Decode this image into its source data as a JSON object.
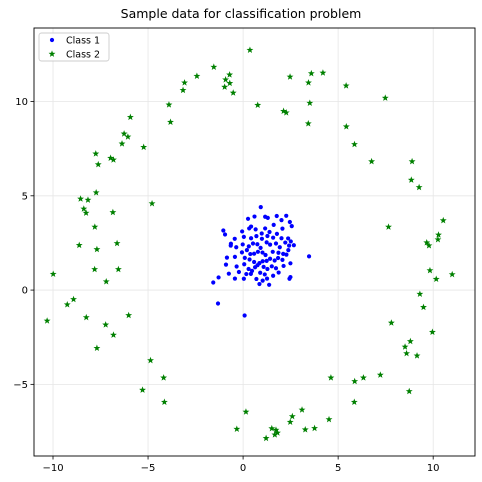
{
  "chart_data": {
    "type": "scatter",
    "title": "Sample data for classification problem",
    "xlabel": "",
    "ylabel": "",
    "xlim": [
      -11.0,
      12.2
    ],
    "ylim": [
      -8.8,
      13.9
    ],
    "xticks": [
      -10,
      -5,
      0,
      5,
      10
    ],
    "yticks": [
      -5,
      0,
      5,
      10
    ],
    "xtick_labels": [
      "−10",
      "−5",
      "0",
      "5",
      "10"
    ],
    "ytick_labels": [
      "−5",
      "0",
      "5",
      "10"
    ],
    "grid": true,
    "legend_position": "top-left",
    "series": [
      {
        "name": "Class 1",
        "marker": "dot",
        "color": "#0000ff",
        "points": [
          [
            0.93,
            4.4
          ],
          [
            0.26,
            3.78
          ],
          [
            0.6,
            3.9
          ],
          [
            1.16,
            3.89
          ],
          [
            1.3,
            3.83
          ],
          [
            1.77,
            3.93
          ],
          [
            2.27,
            3.94
          ],
          [
            2.02,
            3.71
          ],
          [
            2.46,
            3.61
          ],
          [
            0.32,
            3.27
          ],
          [
            0.42,
            3.37
          ],
          [
            0.66,
            3.22
          ],
          [
            0.98,
            3.0
          ],
          [
            1.16,
            3.27
          ],
          [
            1.61,
            3.46
          ],
          [
            1.39,
            3.08
          ],
          [
            2.07,
            3.26
          ],
          [
            2.56,
            3.39
          ],
          [
            -0.95,
            2.95
          ],
          [
            -1.04,
            3.16
          ],
          [
            -0.05,
            3.11
          ],
          [
            -0.44,
            2.72
          ],
          [
            -0.64,
            2.46
          ],
          [
            0.04,
            2.82
          ],
          [
            0.42,
            2.75
          ],
          [
            0.7,
            2.86
          ],
          [
            0.99,
            2.72
          ],
          [
            1.28,
            2.87
          ],
          [
            1.58,
            2.78
          ],
          [
            1.78,
            2.98
          ],
          [
            2.02,
            2.75
          ],
          [
            2.37,
            2.74
          ],
          [
            2.51,
            2.58
          ],
          [
            -0.65,
            2.36
          ],
          [
            -0.36,
            2.27
          ],
          [
            -0.02,
            2.42
          ],
          [
            0.3,
            2.32
          ],
          [
            0.52,
            2.47
          ],
          [
            0.75,
            2.43
          ],
          [
            0.92,
            2.24
          ],
          [
            1.24,
            2.53
          ],
          [
            1.42,
            2.41
          ],
          [
            1.73,
            2.47
          ],
          [
            1.93,
            2.27
          ],
          [
            2.22,
            2.52
          ],
          [
            2.42,
            2.36
          ],
          [
            2.67,
            2.38
          ],
          [
            2.38,
            2.12
          ],
          [
            -0.06,
            2.0
          ],
          [
            0.2,
            2.12
          ],
          [
            0.38,
            1.91
          ],
          [
            0.58,
            1.93
          ],
          [
            0.78,
            2.03
          ],
          [
            1.02,
            1.99
          ],
          [
            1.18,
            1.86
          ],
          [
            1.56,
            2.03
          ],
          [
            1.86,
            1.98
          ],
          [
            2.11,
            1.92
          ],
          [
            2.28,
            1.88
          ],
          [
            3.47,
            1.79
          ],
          [
            -0.85,
            1.72
          ],
          [
            -0.43,
            1.76
          ],
          [
            0.09,
            1.71
          ],
          [
            0.34,
            1.62
          ],
          [
            0.58,
            1.49
          ],
          [
            0.86,
            1.43
          ],
          [
            1.03,
            1.53
          ],
          [
            1.24,
            1.55
          ],
          [
            1.42,
            1.66
          ],
          [
            1.66,
            1.57
          ],
          [
            1.84,
            1.7
          ],
          [
            2.07,
            1.6
          ],
          [
            2.49,
            1.42
          ],
          [
            -0.9,
            1.35
          ],
          [
            -0.34,
            1.25
          ],
          [
            0.06,
            1.37
          ],
          [
            0.29,
            1.12
          ],
          [
            0.63,
            1.21
          ],
          [
            0.76,
            1.32
          ],
          [
            1.08,
            1.23
          ],
          [
            1.28,
            1.12
          ],
          [
            1.51,
            1.26
          ],
          [
            1.73,
            1.16
          ],
          [
            2.13,
            1.28
          ],
          [
            0.47,
            1.02
          ],
          [
            -0.75,
            0.87
          ],
          [
            -1.29,
            0.67
          ],
          [
            -0.22,
            0.96
          ],
          [
            0.17,
            0.85
          ],
          [
            0.41,
            0.86
          ],
          [
            0.9,
            0.92
          ],
          [
            1.14,
            0.83
          ],
          [
            1.58,
            0.76
          ],
          [
            1.87,
            0.93
          ],
          [
            -1.57,
            0.4
          ],
          [
            -0.43,
            0.61
          ],
          [
            0.04,
            0.6
          ],
          [
            0.7,
            0.59
          ],
          [
            1.03,
            0.5
          ],
          [
            1.26,
            0.61
          ],
          [
            2.44,
            0.6
          ],
          [
            2.49,
            0.69
          ],
          [
            0.86,
            0.32
          ],
          [
            1.37,
            0.28
          ],
          [
            -1.32,
            -0.71
          ],
          [
            0.08,
            -1.35
          ]
        ]
      },
      {
        "name": "Class 2",
        "marker": "star",
        "color": "#008000",
        "points": [
          [
            0.36,
            12.73
          ],
          [
            -2.43,
            11.35
          ],
          [
            -1.54,
            11.83
          ],
          [
            -0.71,
            11.42
          ],
          [
            -0.92,
            11.16
          ],
          [
            -0.97,
            10.77
          ],
          [
            -0.7,
            10.97
          ],
          [
            -3.08,
            11.0
          ],
          [
            -0.52,
            10.46
          ],
          [
            -3.16,
            10.6
          ],
          [
            -3.9,
            9.83
          ],
          [
            -3.82,
            8.91
          ],
          [
            -5.93,
            9.17
          ],
          [
            -6.06,
            8.13
          ],
          [
            -6.26,
            8.29
          ],
          [
            -6.37,
            7.76
          ],
          [
            -6.97,
            7.0
          ],
          [
            -6.82,
            6.91
          ],
          [
            -7.75,
            7.23
          ],
          [
            -7.62,
            6.66
          ],
          [
            -5.23,
            7.58
          ],
          [
            0.77,
            9.81
          ],
          [
            2.13,
            9.49
          ],
          [
            2.27,
            9.41
          ],
          [
            2.47,
            11.31
          ],
          [
            3.44,
            11.0
          ],
          [
            3.59,
            11.49
          ],
          [
            4.2,
            11.52
          ],
          [
            3.51,
            9.92
          ],
          [
            3.43,
            8.83
          ],
          [
            5.42,
            10.84
          ],
          [
            5.43,
            8.67
          ],
          [
            5.86,
            7.73
          ],
          [
            7.48,
            10.19
          ],
          [
            6.76,
            6.82
          ],
          [
            -7.73,
            5.17
          ],
          [
            -8.55,
            4.84
          ],
          [
            -8.16,
            4.78
          ],
          [
            -8.38,
            4.31
          ],
          [
            -8.26,
            4.09
          ],
          [
            -7.8,
            3.35
          ],
          [
            -6.85,
            4.12
          ],
          [
            -6.63,
            2.48
          ],
          [
            -7.69,
            2.16
          ],
          [
            -8.62,
            2.38
          ],
          [
            -4.79,
            4.59
          ],
          [
            8.89,
            6.82
          ],
          [
            8.85,
            5.84
          ],
          [
            9.26,
            5.45
          ],
          [
            7.65,
            3.35
          ],
          [
            10.53,
            3.69
          ],
          [
            9.66,
            2.52
          ],
          [
            9.78,
            2.36
          ],
          [
            10.28,
            2.93
          ],
          [
            10.25,
            2.68
          ],
          [
            9.83,
            1.04
          ],
          [
            10.16,
            0.58
          ],
          [
            11.0,
            0.83
          ],
          [
            -9.99,
            0.85
          ],
          [
            -7.81,
            1.1
          ],
          [
            -7.2,
            0.45
          ],
          [
            -6.56,
            1.1
          ],
          [
            -8.92,
            -0.49
          ],
          [
            -9.25,
            -0.77
          ],
          [
            -10.31,
            -1.63
          ],
          [
            -8.25,
            -1.45
          ],
          [
            -7.23,
            -1.84
          ],
          [
            -6.82,
            -2.38
          ],
          [
            -6.02,
            -1.34
          ],
          [
            -7.69,
            -3.08
          ],
          [
            9.3,
            -0.21
          ],
          [
            9.49,
            -0.91
          ],
          [
            7.8,
            -1.74
          ],
          [
            9.96,
            -2.23
          ],
          [
            8.8,
            -2.72
          ],
          [
            8.52,
            -3.01
          ],
          [
            8.6,
            -3.36
          ],
          [
            9.15,
            -3.48
          ],
          [
            8.74,
            -5.37
          ],
          [
            -4.87,
            -3.73
          ],
          [
            -4.18,
            -4.65
          ],
          [
            -5.29,
            -5.3
          ],
          [
            -4.14,
            -5.94
          ],
          [
            6.33,
            -4.65
          ],
          [
            5.87,
            -4.84
          ],
          [
            7.22,
            -4.5
          ],
          [
            4.62,
            -4.65
          ],
          [
            5.85,
            -5.94
          ],
          [
            0.15,
            -6.46
          ],
          [
            -0.33,
            -7.37
          ],
          [
            1.51,
            -7.34
          ],
          [
            1.73,
            -7.42
          ],
          [
            1.67,
            -7.67
          ],
          [
            1.21,
            -7.86
          ],
          [
            1.81,
            -7.57
          ],
          [
            2.59,
            -6.7
          ],
          [
            2.48,
            -7.0
          ],
          [
            3.1,
            -6.35
          ],
          [
            3.27,
            -7.4
          ],
          [
            3.76,
            -7.33
          ],
          [
            4.52,
            -6.86
          ]
        ]
      }
    ]
  }
}
